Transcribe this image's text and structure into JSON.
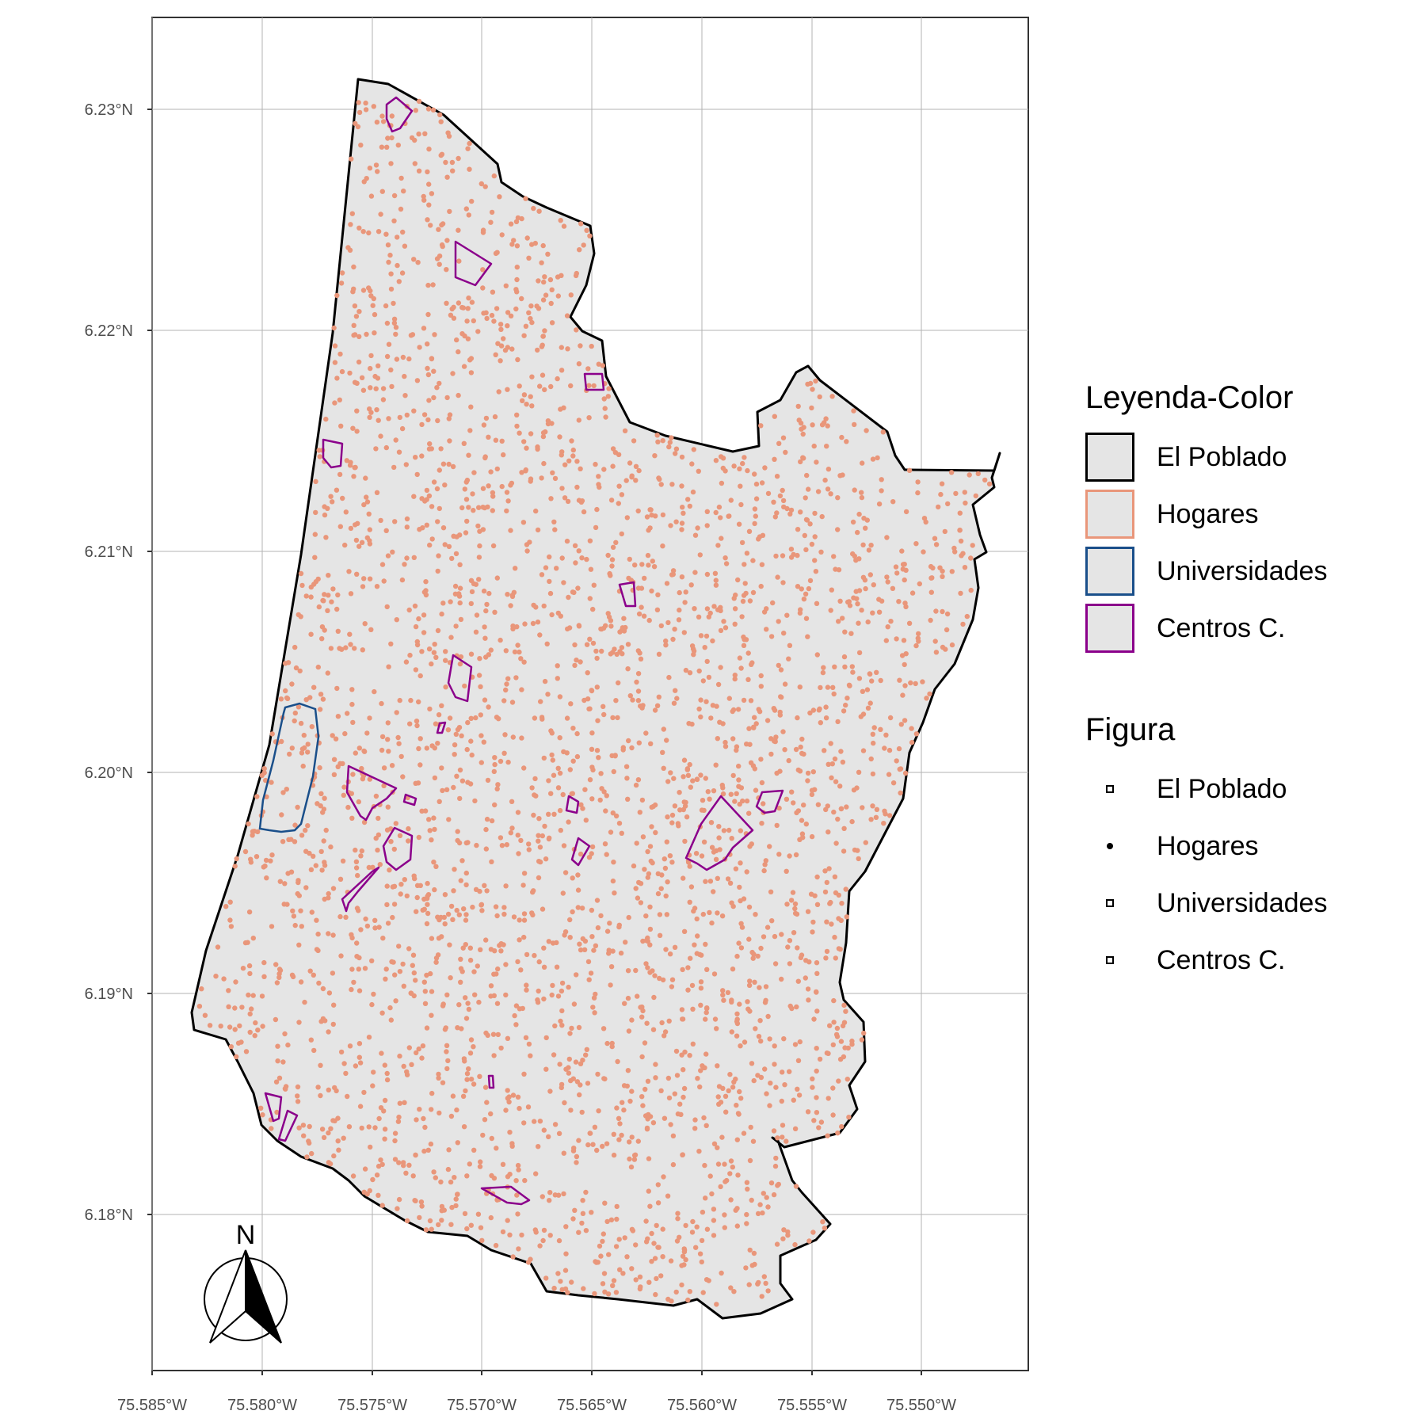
{
  "map": {
    "axes": {
      "y_ticks": [
        "6.23°N",
        "6.22°N",
        "6.21°N",
        "6.20°N",
        "6.19°N",
        "6.18°N"
      ],
      "x_ticks": [
        "75.585°W",
        "75.580°W",
        "75.575°W",
        "75.570°W",
        "75.565°W",
        "75.560°W",
        "75.555°W",
        "75.550°W"
      ]
    },
    "north_arrow_label": "N",
    "colors": {
      "panel_bg": "#ffffff",
      "grid": "#b3b3b3",
      "region_fill": "#e5e5e5",
      "region_border": "#000000",
      "hogares": "#e9967a",
      "universidades": "#1a4f8a",
      "centros": "#8b008b"
    }
  },
  "legend_color": {
    "title": "Leyenda-Color",
    "items": [
      {
        "label": "El Poblado",
        "border": "#000000"
      },
      {
        "label": "Hogares",
        "border": "#e9967a"
      },
      {
        "label": "Universidades",
        "border": "#1a4f8a"
      },
      {
        "label": "Centros C.",
        "border": "#8b008b"
      }
    ]
  },
  "legend_shape": {
    "title": "Figura",
    "items": [
      {
        "label": "El Poblado",
        "shape": "square"
      },
      {
        "label": "Hogares",
        "shape": "dot"
      },
      {
        "label": "Universidades",
        "shape": "square"
      },
      {
        "label": "Centros C.",
        "shape": "square"
      }
    ]
  }
}
